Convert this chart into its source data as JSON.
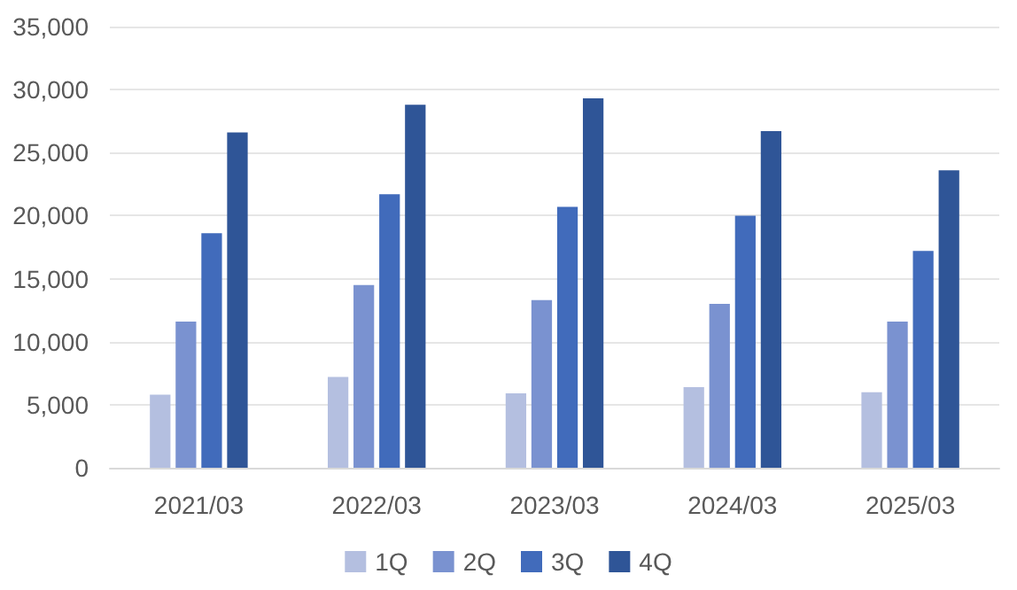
{
  "chart_data": {
    "type": "bar",
    "categories": [
      "2021/03",
      "2022/03",
      "2023/03",
      "2024/03",
      "2025/03"
    ],
    "series": [
      {
        "name": "1Q",
        "color": "#b4bfe0",
        "values": [
          5800,
          7200,
          5900,
          6400,
          6000
        ]
      },
      {
        "name": "2Q",
        "color": "#7a92d0",
        "values": [
          11600,
          14500,
          13300,
          13000,
          11600
        ]
      },
      {
        "name": "3Q",
        "color": "#416bbb",
        "values": [
          18600,
          21700,
          20700,
          20000,
          17200
        ]
      },
      {
        "name": "4Q",
        "color": "#2f5597",
        "values": [
          26600,
          28800,
          29300,
          26700,
          23600
        ]
      }
    ],
    "ylim": [
      0,
      35000
    ],
    "yticks": [
      0,
      {
        "value": 5000,
        "label": "5,000"
      },
      {
        "value": 10000,
        "label": "10,000"
      },
      {
        "value": 15000,
        "label": "15,000"
      },
      {
        "value": 20000,
        "label": "20,000"
      },
      {
        "value": 25000,
        "label": "25,000"
      },
      {
        "value": 30000,
        "label": "30,000"
      },
      {
        "value": 35000,
        "label": "35,000"
      }
    ],
    "grid": "y",
    "legend": "bottom"
  }
}
